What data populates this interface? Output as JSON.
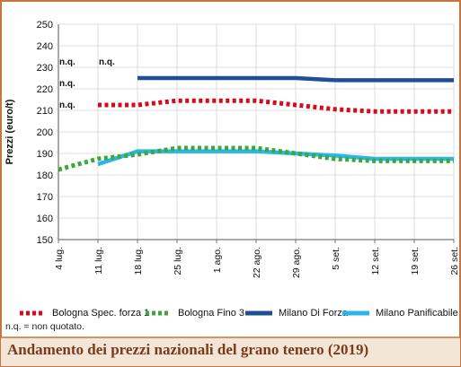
{
  "chart_data": {
    "type": "line",
    "title": "Andamento dei prezzi nazionali del grano tenero (2019)",
    "ylabel": "Prezzi (euro/t)",
    "xlabel": "",
    "ylim": [
      150,
      250
    ],
    "yticks": [
      150,
      160,
      170,
      180,
      190,
      200,
      210,
      220,
      230,
      240,
      250
    ],
    "categories": [
      "4 lug.",
      "11 lug.",
      "18 lug.",
      "25 lug.",
      "1 ago.",
      "22 ago.",
      "29 ago.",
      "5 set.",
      "12 set.",
      "19 set.",
      "26 set."
    ],
    "series": [
      {
        "name": "Bologna Spec. forza 1",
        "color": "#d9081b",
        "style": "dotted",
        "values": [
          null,
          212.5,
          212.5,
          214.5,
          214.5,
          214.5,
          212.5,
          210.5,
          209.5,
          209.5,
          209.5
        ]
      },
      {
        "name": "Bologna Fino 3",
        "color": "#3ba83a",
        "style": "dotted",
        "values": [
          182.5,
          187.5,
          189.5,
          192.5,
          192.5,
          192.5,
          190,
          187.5,
          186.5,
          186.5,
          186.5
        ]
      },
      {
        "name": "Milano Di Forza",
        "color": "#1f4e96",
        "style": "solid",
        "values": [
          null,
          null,
          225,
          225,
          225,
          225,
          225,
          224,
          224,
          224,
          224
        ]
      },
      {
        "name": "Milano Panificabile",
        "color": "#2bb5e8",
        "style": "solid",
        "values": [
          null,
          185,
          191,
          191,
          191,
          191,
          190,
          189,
          187.5,
          187.5,
          187.5
        ]
      }
    ],
    "annotations": [
      {
        "text": "n.q.",
        "x": "4 lug.",
        "y": 230
      },
      {
        "text": "n.q.",
        "x": "11 lug.",
        "y": 230
      },
      {
        "text": "n.q.",
        "x": "4 lug.",
        "y": 220
      },
      {
        "text": "n.q.",
        "x": "4 lug.",
        "y": 210
      }
    ],
    "grid": true,
    "legend_position": "bottom"
  },
  "footnote": "n.q. = non quotato.",
  "colors": {
    "frame": "#c8743c",
    "title_text": "#7a3a1c",
    "title_bg": "#f4e6d7"
  }
}
